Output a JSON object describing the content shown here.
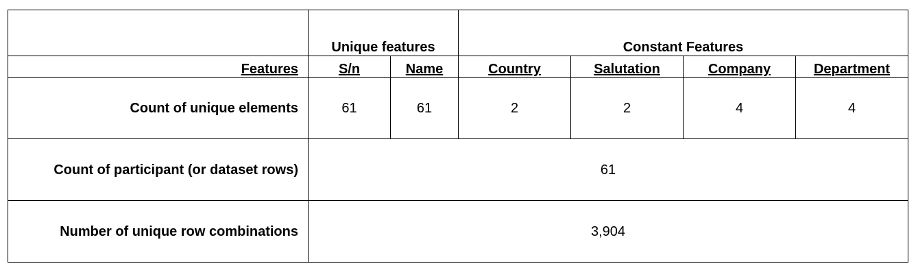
{
  "table": {
    "group_headers": {
      "unique": "Unique features",
      "constant": "Constant Features"
    },
    "features_label": "Features",
    "columns": [
      "S/n",
      "Name",
      "Country",
      "Salutation",
      "Company",
      "Department"
    ],
    "rows": {
      "unique_elements": {
        "label": "Count of unique elements",
        "values": [
          "61",
          "61",
          "2",
          "2",
          "4",
          "4"
        ]
      },
      "participants": {
        "label": "Count of participant (or dataset rows)",
        "value": "61"
      },
      "combinations": {
        "label": "Number of unique row combinations",
        "value": "3,904"
      }
    }
  }
}
